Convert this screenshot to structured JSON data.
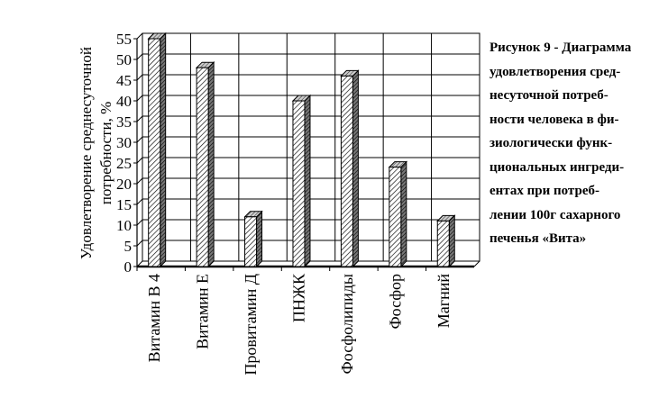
{
  "chart_data": {
    "type": "bar",
    "categories": [
      "Витамин B 4",
      "Витамин Е",
      "Провитамин Д",
      "ПНЖК",
      "Фосфолипиды",
      "Фосфор",
      "Магний"
    ],
    "values": [
      55,
      48,
      12,
      40,
      46,
      24,
      11
    ],
    "ylabel": "Удовлетворение среднесуточной потребности, %",
    "xlabel": "",
    "ylim": [
      0,
      55
    ],
    "yticks": [
      0,
      5,
      10,
      15,
      20,
      25,
      30,
      35,
      40,
      45,
      50,
      55
    ],
    "grid": true,
    "legend": "none",
    "style": "3d-hatched"
  },
  "caption": {
    "lines": [
      "Рисунок 9 - Диаграмма",
      "удовлетворения сред-",
      "несуточной потреб-",
      "ности человека в фи-",
      "зиологически функ-",
      "циональных ингреди-",
      "ентах при потреб-",
      "лении 100г сахарного",
      "печенья «Вита»"
    ]
  }
}
